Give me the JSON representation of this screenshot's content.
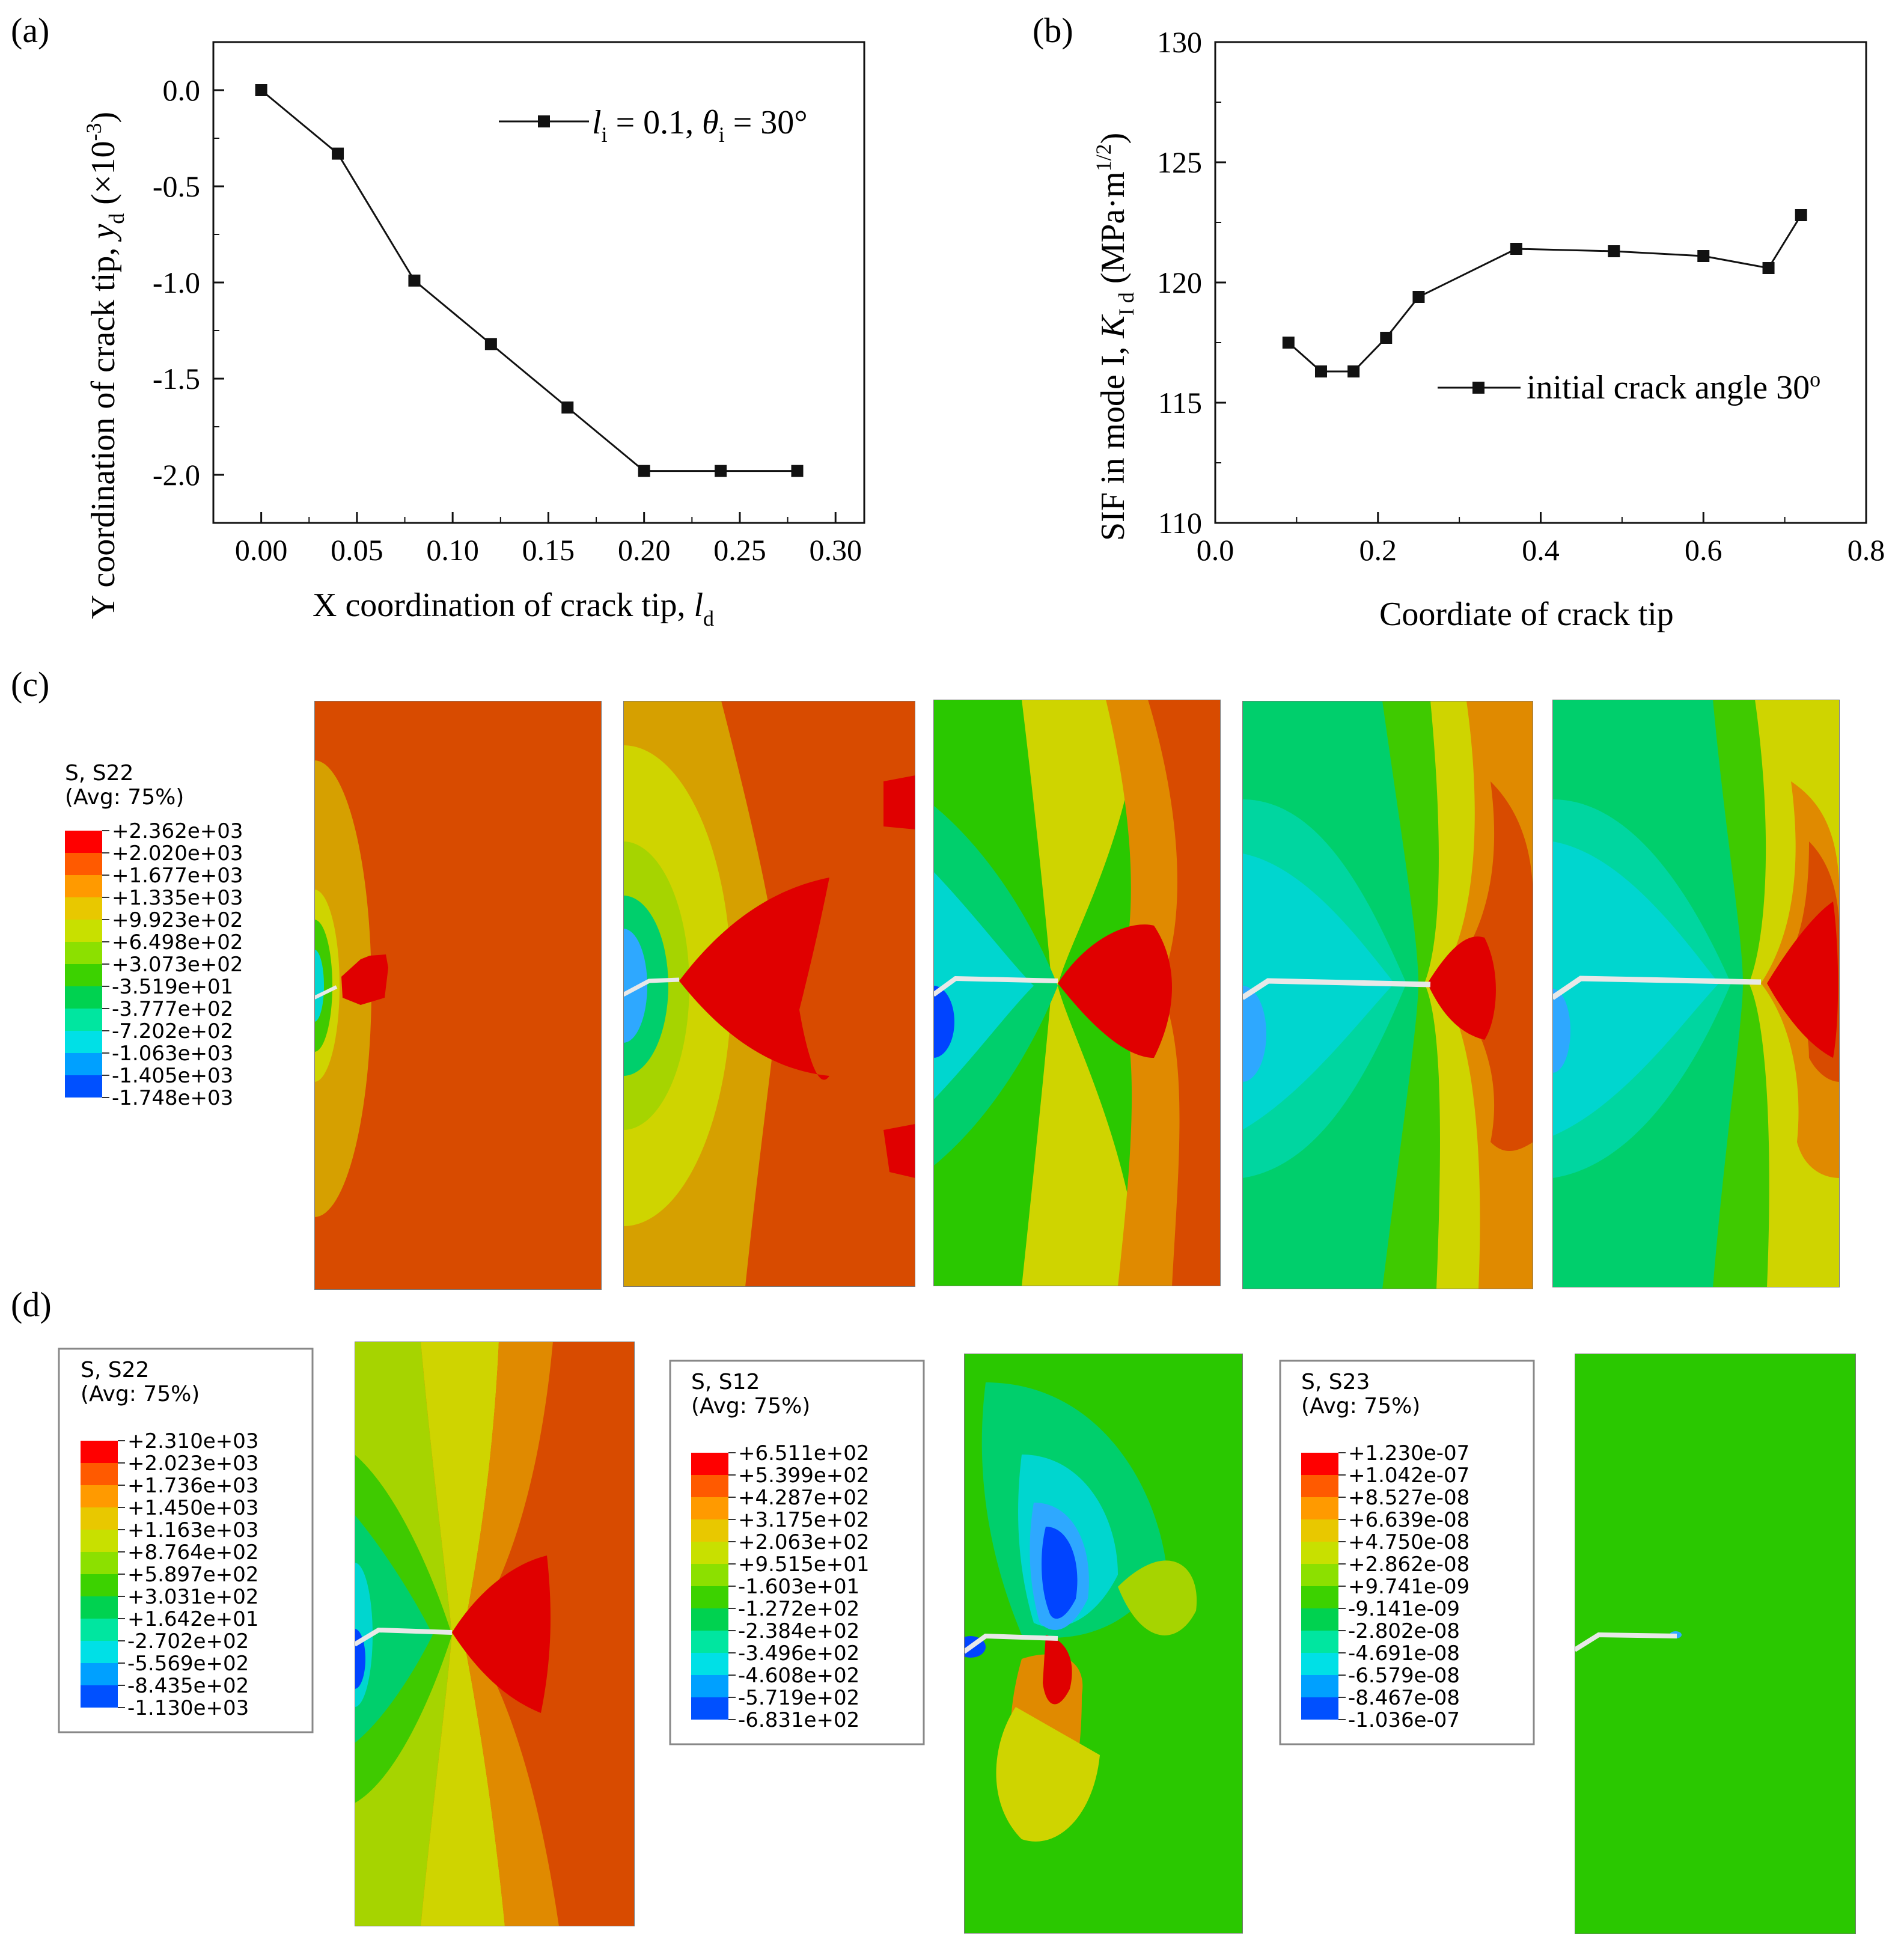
{
  "panels": {
    "a": "(a)",
    "b": "(b)",
    "c": "(c)",
    "d": "(d)"
  },
  "chart_data": [
    {
      "type": "line",
      "title": "",
      "xlabel_main": "X coordination of crack tip, ",
      "xlabel_var": "l",
      "xlabel_sub": "d",
      "ylabel_main": "Y coordination of crack tip, ",
      "ylabel_var": "y",
      "ylabel_sub": "d",
      "ylabel_unit_pre": " (×10",
      "ylabel_unit_sup": "-3",
      "ylabel_unit_post": ")",
      "xlim": [
        -0.025,
        0.315
      ],
      "ylim": [
        -2.25,
        0.25
      ],
      "xticks": [
        0.0,
        0.05,
        0.1,
        0.15,
        0.2,
        0.25,
        0.3
      ],
      "xtick_labels": [
        "0.00",
        "0.05",
        "0.10",
        "0.15",
        "0.20",
        "0.25",
        "0.30"
      ],
      "yticks": [
        0.0,
        -0.5,
        -1.0,
        -1.5,
        -2.0
      ],
      "ytick_labels": [
        "0.0",
        "-0.5",
        "-1.0",
        "-1.5",
        "-2.0"
      ],
      "legend": {
        "position": "top-right",
        "l": "l",
        "l_sub": "i",
        "mid": " = 0.1, ",
        "theta": "θ",
        "theta_sub": "i",
        "end": " = 30°"
      },
      "series": [
        {
          "name": "li = 0.1, θi = 30°",
          "x": [
            0.0,
            0.04,
            0.08,
            0.12,
            0.16,
            0.2,
            0.24,
            0.28
          ],
          "y": [
            0.0,
            -0.33,
            -0.99,
            -1.32,
            -1.65,
            -1.98,
            -1.98,
            -1.98
          ]
        }
      ]
    },
    {
      "type": "line",
      "title": "",
      "xlabel": "Coordiate of crack tip",
      "ylabel_main": "SIF in mode I, ",
      "ylabel_var": "K",
      "ylabel_sub": "I d",
      "ylabel_unit_pre": " (MPa·m",
      "ylabel_unit_sup": "1/2",
      "ylabel_unit_post": ")",
      "xlim": [
        0.0,
        0.8
      ],
      "ylim": [
        110,
        130
      ],
      "xticks": [
        0.0,
        0.2,
        0.4,
        0.6,
        0.8
      ],
      "xtick_labels": [
        "0.0",
        "0.2",
        "0.4",
        "0.6",
        "0.8"
      ],
      "yticks": [
        110,
        115,
        120,
        125,
        130
      ],
      "ytick_labels": [
        "110",
        "115",
        "120",
        "125",
        "130"
      ],
      "legend": {
        "position": "center-right",
        "label": "initial crack angle 30",
        "sup": "o"
      },
      "series": [
        {
          "name": "initial crack angle 30o",
          "x": [
            0.09,
            0.13,
            0.17,
            0.21,
            0.25,
            0.37,
            0.49,
            0.6,
            0.68,
            0.72
          ],
          "y": [
            117.5,
            116.3,
            116.3,
            117.7,
            119.4,
            121.4,
            121.3,
            121.1,
            120.6,
            122.8
          ]
        }
      ]
    }
  ],
  "legends": {
    "c_s22": {
      "title1": "S, S22",
      "title2": "(Avg: 75%)",
      "values": [
        "+2.362e+03",
        "+2.020e+03",
        "+1.677e+03",
        "+1.335e+03",
        "+9.923e+02",
        "+6.498e+02",
        "+3.073e+02",
        "-3.519e+01",
        "-3.777e+02",
        "-7.202e+02",
        "-1.063e+03",
        "-1.405e+03",
        "-1.748e+03"
      ]
    },
    "d_s22": {
      "title1": "S, S22",
      "title2": "(Avg: 75%)",
      "values": [
        "+2.310e+03",
        "+2.023e+03",
        "+1.736e+03",
        "+1.450e+03",
        "+1.163e+03",
        "+8.764e+02",
        "+5.897e+02",
        "+3.031e+02",
        "+1.642e+01",
        "-2.702e+02",
        "-5.569e+02",
        "-8.435e+02",
        "-1.130e+03"
      ]
    },
    "d_s12": {
      "title1": "S, S12",
      "title2": "(Avg: 75%)",
      "values": [
        "+6.511e+02",
        "+5.399e+02",
        "+4.287e+02",
        "+3.175e+02",
        "+2.063e+02",
        "+9.515e+01",
        "-1.603e+01",
        "-1.272e+02",
        "-2.384e+02",
        "-3.496e+02",
        "-4.608e+02",
        "-5.719e+02",
        "-6.831e+02"
      ]
    },
    "d_s23": {
      "title1": "S, S23",
      "title2": "(Avg: 75%)",
      "values": [
        "+1.230e-07",
        "+1.042e-07",
        "+8.527e-08",
        "+6.639e-08",
        "+4.750e-08",
        "+2.862e-08",
        "+9.741e-09",
        "-9.141e-09",
        "-2.802e-08",
        "-4.691e-08",
        "-6.579e-08",
        "-8.467e-08",
        "-1.036e-07"
      ]
    }
  },
  "colors": {
    "scale": [
      "#ff0000",
      "#ff5a00",
      "#ff9a00",
      "#e8c800",
      "#c8e000",
      "#8ce000",
      "#3cd200",
      "#00d250",
      "#00e6a0",
      "#00e0e6",
      "#00a0ff",
      "#0050ff",
      "#0000ff"
    ],
    "red": "#e00000",
    "orange_red": "#d84b00",
    "orange": "#e08a00",
    "gold": "#d6a000",
    "yellow": "#cfd400",
    "yellow_green": "#a6d400",
    "green": "#3fca00",
    "bright_green": "#2ac800",
    "sea_green": "#00cf6c",
    "aqua_green": "#00d6a0",
    "cyan": "#00d6cf",
    "light_blue": "#2ea8ff",
    "blue": "#0044ff",
    "line": "#111111"
  }
}
